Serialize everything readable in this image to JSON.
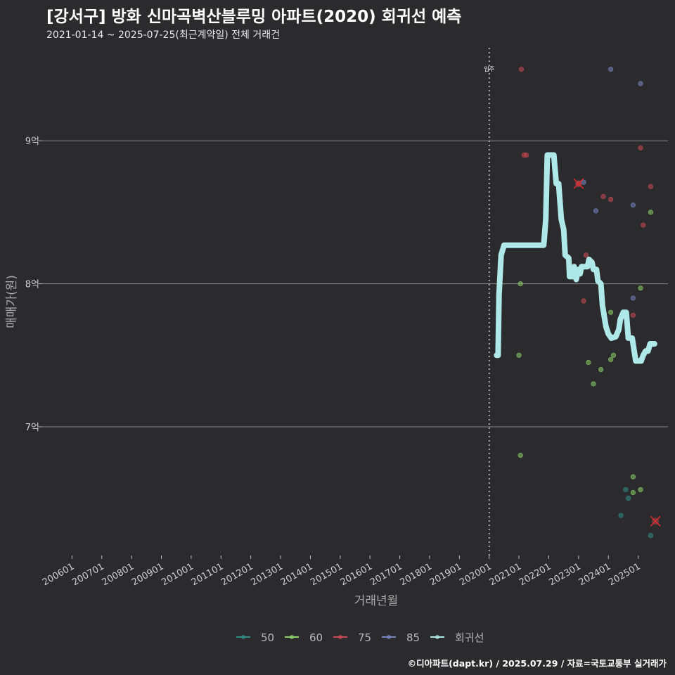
{
  "header": {
    "title": "[강서구] 방화 신마곡벽산블루밍 아파트(2020) 회귀선 예측",
    "subtitle": "2021-01-14 ~ 2025-07-25(최근계약일) 전체 거래건"
  },
  "credit": "©디아파트(dapt.kr) / 2025.07.29 / 자료=국토교통부 실거래가",
  "chart_data": {
    "type": "scatter",
    "title": "[강서구] 방화 신마곡벽산블루밍 아파트(2020) 회귀선 예측",
    "xlabel": "거래년월",
    "ylabel": "매매가(원)",
    "x_ticks": [
      "200601",
      "200701",
      "200801",
      "200901",
      "201001",
      "201101",
      "201201",
      "201301",
      "201401",
      "201501",
      "201601",
      "201701",
      "201801",
      "201901",
      "202001",
      "202101",
      "202201",
      "202301",
      "202401",
      "202501"
    ],
    "y_ticks": [
      {
        "value": 7.0,
        "label": "7억"
      },
      {
        "value": 8.0,
        "label": "8억"
      },
      {
        "value": 9.0,
        "label": "9억"
      }
    ],
    "xlim": [
      2005.0,
      2026.0
    ],
    "ylim": [
      6.1,
      9.65
    ],
    "grid": true,
    "legend_position": "bottom",
    "vline": {
      "x": 2020.0,
      "label": "입주"
    },
    "legend": [
      {
        "name": "50",
        "color": "#2f8f87"
      },
      {
        "name": "60",
        "color": "#8cd46a"
      },
      {
        "name": "75",
        "color": "#cc4a52"
      },
      {
        "name": "85",
        "color": "#7786c4"
      },
      {
        "name": "회귀선",
        "color": "#aee8e8"
      }
    ],
    "series": [
      {
        "name": "50",
        "color": "#2f8f87",
        "points": [
          [
            2024.42,
            6.38
          ],
          [
            2024.58,
            6.56
          ],
          [
            2024.67,
            6.5
          ],
          [
            2025.42,
            6.24
          ]
        ]
      },
      {
        "name": "60",
        "color": "#8cd46a",
        "points": [
          [
            2021.0,
            7.5
          ],
          [
            2021.05,
            8.0
          ],
          [
            2021.05,
            6.8
          ],
          [
            2023.33,
            7.45
          ],
          [
            2023.5,
            7.3
          ],
          [
            2023.75,
            7.4
          ],
          [
            2024.08,
            7.8
          ],
          [
            2024.08,
            7.47
          ],
          [
            2024.17,
            7.5
          ],
          [
            2024.83,
            6.54
          ],
          [
            2024.83,
            6.65
          ],
          [
            2025.08,
            7.97
          ],
          [
            2025.08,
            6.56
          ],
          [
            2025.42,
            8.5
          ]
        ]
      },
      {
        "name": "75",
        "color": "#cc4a52",
        "points": [
          [
            2021.08,
            9.5
          ],
          [
            2021.17,
            8.9
          ],
          [
            2021.25,
            8.9
          ],
          [
            2023.0,
            8.7
          ],
          [
            2023.17,
            7.88
          ],
          [
            2023.25,
            8.2
          ],
          [
            2023.83,
            8.61
          ],
          [
            2024.08,
            8.59
          ],
          [
            2024.83,
            7.78
          ],
          [
            2025.08,
            8.95
          ],
          [
            2025.17,
            8.41
          ],
          [
            2025.42,
            8.68
          ]
        ]
      },
      {
        "name": "85",
        "color": "#7786c4",
        "points": [
          [
            2023.17,
            8.71
          ],
          [
            2023.58,
            8.51
          ],
          [
            2024.08,
            9.5
          ],
          [
            2024.83,
            8.55
          ],
          [
            2024.83,
            7.9
          ],
          [
            2025.08,
            9.4
          ]
        ]
      },
      {
        "name": "회귀선",
        "color": "#aee8e8",
        "type": "line",
        "points": [
          [
            2020.25,
            7.5
          ],
          [
            2020.3,
            7.5
          ],
          [
            2020.33,
            7.92
          ],
          [
            2020.4,
            8.2
          ],
          [
            2020.5,
            8.27
          ],
          [
            2021.5,
            8.27
          ],
          [
            2021.83,
            8.27
          ],
          [
            2021.9,
            8.45
          ],
          [
            2021.95,
            8.9
          ],
          [
            2022.08,
            8.9
          ],
          [
            2022.17,
            8.9
          ],
          [
            2022.25,
            8.7
          ],
          [
            2022.33,
            8.7
          ],
          [
            2022.42,
            8.45
          ],
          [
            2022.5,
            8.38
          ],
          [
            2022.55,
            8.2
          ],
          [
            2022.67,
            8.18
          ],
          [
            2022.7,
            8.05
          ],
          [
            2022.8,
            8.05
          ],
          [
            2022.85,
            8.12
          ],
          [
            2022.92,
            8.03
          ],
          [
            2023.0,
            8.1
          ],
          [
            2023.05,
            8.07
          ],
          [
            2023.1,
            8.12
          ],
          [
            2023.3,
            8.12
          ],
          [
            2023.35,
            8.17
          ],
          [
            2023.45,
            8.15
          ],
          [
            2023.5,
            8.1
          ],
          [
            2023.6,
            8.1
          ],
          [
            2023.65,
            8.02
          ],
          [
            2023.75,
            8.0
          ],
          [
            2023.8,
            7.85
          ],
          [
            2023.92,
            7.7
          ],
          [
            2024.0,
            7.65
          ],
          [
            2024.1,
            7.62
          ],
          [
            2024.25,
            7.63
          ],
          [
            2024.35,
            7.68
          ],
          [
            2024.4,
            7.75
          ],
          [
            2024.5,
            7.8
          ],
          [
            2024.6,
            7.8
          ],
          [
            2024.67,
            7.62
          ],
          [
            2024.8,
            7.62
          ],
          [
            2024.92,
            7.46
          ],
          [
            2025.0,
            7.46
          ],
          [
            2025.1,
            7.46
          ],
          [
            2025.17,
            7.5
          ],
          [
            2025.25,
            7.53
          ],
          [
            2025.33,
            7.53
          ],
          [
            2025.4,
            7.58
          ],
          [
            2025.55,
            7.58
          ]
        ]
      }
    ],
    "anomalies": [
      [
        2023.0,
        8.7
      ],
      [
        2025.58,
        6.34
      ]
    ]
  }
}
